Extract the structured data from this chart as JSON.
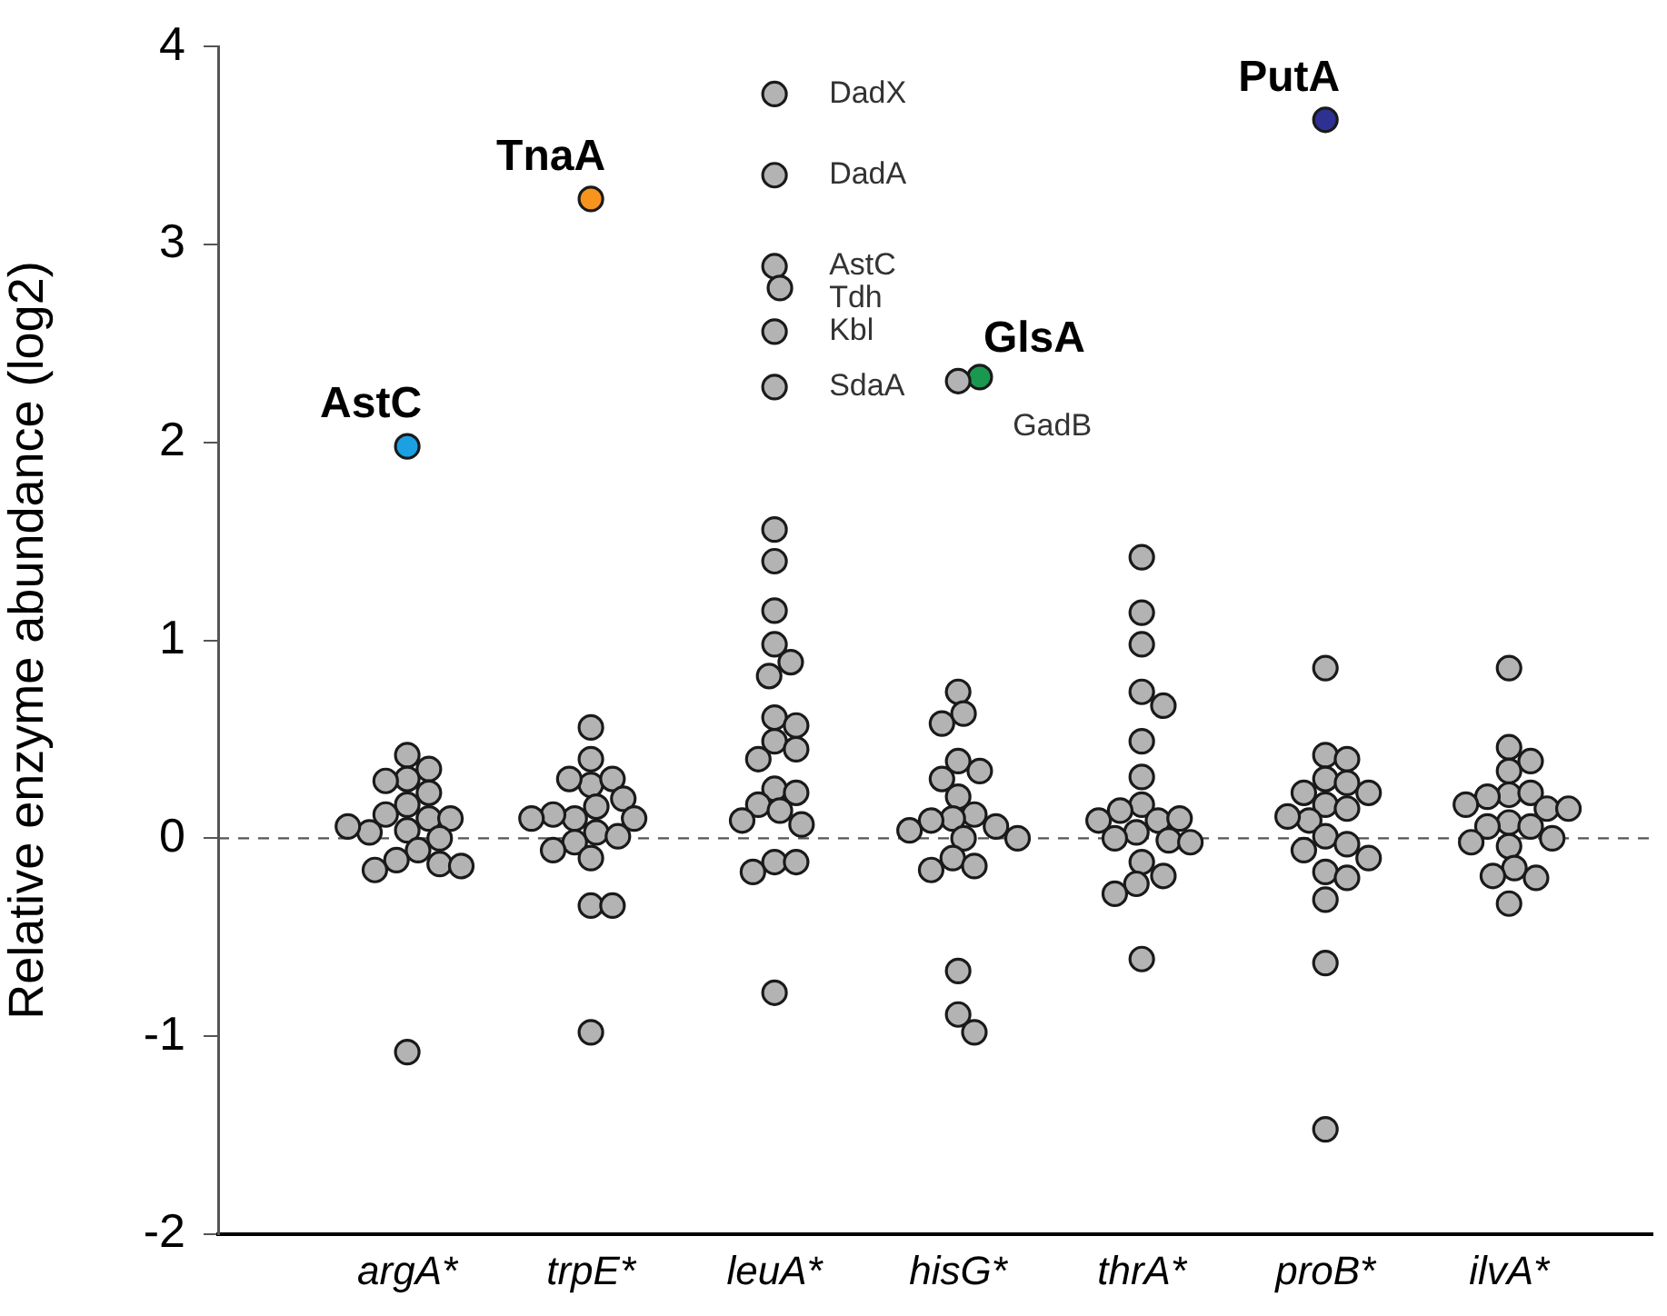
{
  "chart_data": {
    "type": "scatter",
    "ylabel": "Relative enzyme abundance (log2)",
    "categories": [
      "argA*",
      "trpE*",
      "leuA*",
      "hisG*",
      "thrA*",
      "proB*",
      "ilvA*"
    ],
    "ylim": [
      -2,
      4
    ],
    "yticks": [
      -2,
      -1,
      0,
      1,
      2,
      3,
      4
    ],
    "grid": false,
    "legend": false,
    "marker": "circle",
    "ref_lines": [
      {
        "axis": "y",
        "value": 0,
        "color": "#555555",
        "line_style": "dashed"
      }
    ],
    "series": [
      {
        "color": "#b3b3b3",
        "x": [
          "argA*",
          "argA*",
          "argA*",
          "argA*",
          "argA*",
          "argA*",
          "argA*",
          "argA*",
          "argA*",
          "argA*",
          "argA*",
          "argA*",
          "argA*",
          "argA*",
          "argA*",
          "argA*",
          "argA*",
          "argA*",
          "argA*",
          "trpE*",
          "trpE*",
          "trpE*",
          "trpE*",
          "trpE*",
          "trpE*",
          "trpE*",
          "trpE*",
          "trpE*",
          "trpE*",
          "trpE*",
          "trpE*",
          "trpE*",
          "trpE*",
          "trpE*",
          "trpE*",
          "trpE*",
          "trpE*",
          "trpE*",
          "leuA*",
          "leuA*",
          "leuA*",
          "leuA*",
          "leuA*",
          "leuA*",
          "leuA*",
          "leuA*",
          "leuA*",
          "leuA*",
          "leuA*",
          "leuA*",
          "leuA*",
          "leuA*",
          "leuA*",
          "leuA*",
          "leuA*",
          "leuA*",
          "leuA*",
          "leuA*",
          "leuA*",
          "leuA*",
          "leuA*",
          "leuA*",
          "leuA*",
          "leuA*",
          "leuA*",
          "hisG*",
          "hisG*",
          "hisG*",
          "hisG*",
          "hisG*",
          "hisG*",
          "hisG*",
          "hisG*",
          "hisG*",
          "hisG*",
          "hisG*",
          "hisG*",
          "hisG*",
          "hisG*",
          "hisG*",
          "hisG*",
          "hisG*",
          "hisG*",
          "hisG*",
          "hisG*",
          "hisG*",
          "thrA*",
          "thrA*",
          "thrA*",
          "thrA*",
          "thrA*",
          "thrA*",
          "thrA*",
          "thrA*",
          "thrA*",
          "thrA*",
          "thrA*",
          "thrA*",
          "thrA*",
          "thrA*",
          "thrA*",
          "thrA*",
          "thrA*",
          "thrA*",
          "thrA*",
          "thrA*",
          "thrA*",
          "proB*",
          "proB*",
          "proB*",
          "proB*",
          "proB*",
          "proB*",
          "proB*",
          "proB*",
          "proB*",
          "proB*",
          "proB*",
          "proB*",
          "proB*",
          "proB*",
          "proB*",
          "proB*",
          "proB*",
          "proB*",
          "proB*",
          "proB*",
          "ilvA*",
          "ilvA*",
          "ilvA*",
          "ilvA*",
          "ilvA*",
          "ilvA*",
          "ilvA*",
          "ilvA*",
          "ilvA*",
          "ilvA*",
          "ilvA*",
          "ilvA*",
          "ilvA*",
          "ilvA*",
          "ilvA*",
          "ilvA*",
          "ilvA*",
          "ilvA*",
          "ilvA*",
          "ilvA*"
        ],
        "values": [
          0.42,
          0.35,
          0.3,
          0.29,
          0.23,
          0.17,
          0.1,
          0.12,
          0.04,
          0.03,
          0.1,
          0.06,
          0.0,
          -0.06,
          -0.11,
          -0.13,
          -0.16,
          -0.14,
          -1.08,
          0.56,
          0.4,
          0.27,
          0.3,
          0.3,
          0.2,
          0.16,
          0.1,
          0.12,
          0.1,
          0.1,
          0.03,
          0.01,
          -0.02,
          -0.06,
          -0.1,
          -0.34,
          -0.34,
          -0.98,
          3.76,
          3.35,
          2.89,
          2.78,
          2.56,
          2.28,
          1.56,
          1.4,
          1.15,
          0.98,
          0.89,
          0.82,
          0.61,
          0.57,
          0.49,
          0.45,
          0.4,
          0.25,
          0.23,
          0.17,
          0.14,
          0.07,
          0.09,
          -0.12,
          -0.12,
          -0.17,
          -0.78,
          2.31,
          0.74,
          0.63,
          0.58,
          0.39,
          0.34,
          0.3,
          0.21,
          0.12,
          0.1,
          0.09,
          0.06,
          0.04,
          0.0,
          0.0,
          -0.1,
          -0.14,
          -0.16,
          -0.67,
          -0.89,
          -0.98,
          1.42,
          1.14,
          0.98,
          0.74,
          0.67,
          0.49,
          0.31,
          0.17,
          0.09,
          0.14,
          0.1,
          0.09,
          0.03,
          0.0,
          -0.01,
          -0.02,
          -0.12,
          -0.19,
          -0.23,
          -0.28,
          -0.61,
          0.86,
          0.42,
          0.4,
          0.3,
          0.28,
          0.23,
          0.23,
          0.17,
          0.15,
          0.09,
          0.11,
          0.01,
          -0.03,
          -0.06,
          -0.1,
          -0.17,
          -0.2,
          -0.31,
          -0.63,
          -1.47,
          0.86,
          0.46,
          0.39,
          0.34,
          0.22,
          0.23,
          0.21,
          0.15,
          0.17,
          0.15,
          0.08,
          0.06,
          0.06,
          0.0,
          -0.02,
          -0.04,
          -0.15,
          -0.19,
          -0.2,
          -0.33
        ]
      },
      {
        "name": "AstC",
        "color": "#1ba1e2",
        "x": [
          "argA*"
        ],
        "values": [
          1.98
        ]
      },
      {
        "name": "TnaA",
        "color": "#f7941d",
        "x": [
          "trpE*"
        ],
        "values": [
          3.23
        ]
      },
      {
        "name": "GlsA",
        "color": "#1a9850",
        "x": [
          "hisG*"
        ],
        "values": [
          2.33
        ]
      },
      {
        "name": "PutA",
        "color": "#2e3192",
        "x": [
          "proB*"
        ],
        "values": [
          3.63
        ]
      }
    ],
    "annotations": [
      {
        "text": "DadX",
        "x": "leuA*",
        "y": 3.76
      },
      {
        "text": "DadA",
        "x": "leuA*",
        "y": 3.35
      },
      {
        "text": "AstC",
        "x": "leuA*",
        "y": 2.89
      },
      {
        "text": "Tdh",
        "x": "leuA*",
        "y": 2.78
      },
      {
        "text": "Kbl",
        "x": "leuA*",
        "y": 2.56
      },
      {
        "text": "SdaA",
        "x": "leuA*",
        "y": 2.28
      },
      {
        "text": "GadB",
        "x": "hisG*",
        "y": 2.31
      }
    ]
  }
}
